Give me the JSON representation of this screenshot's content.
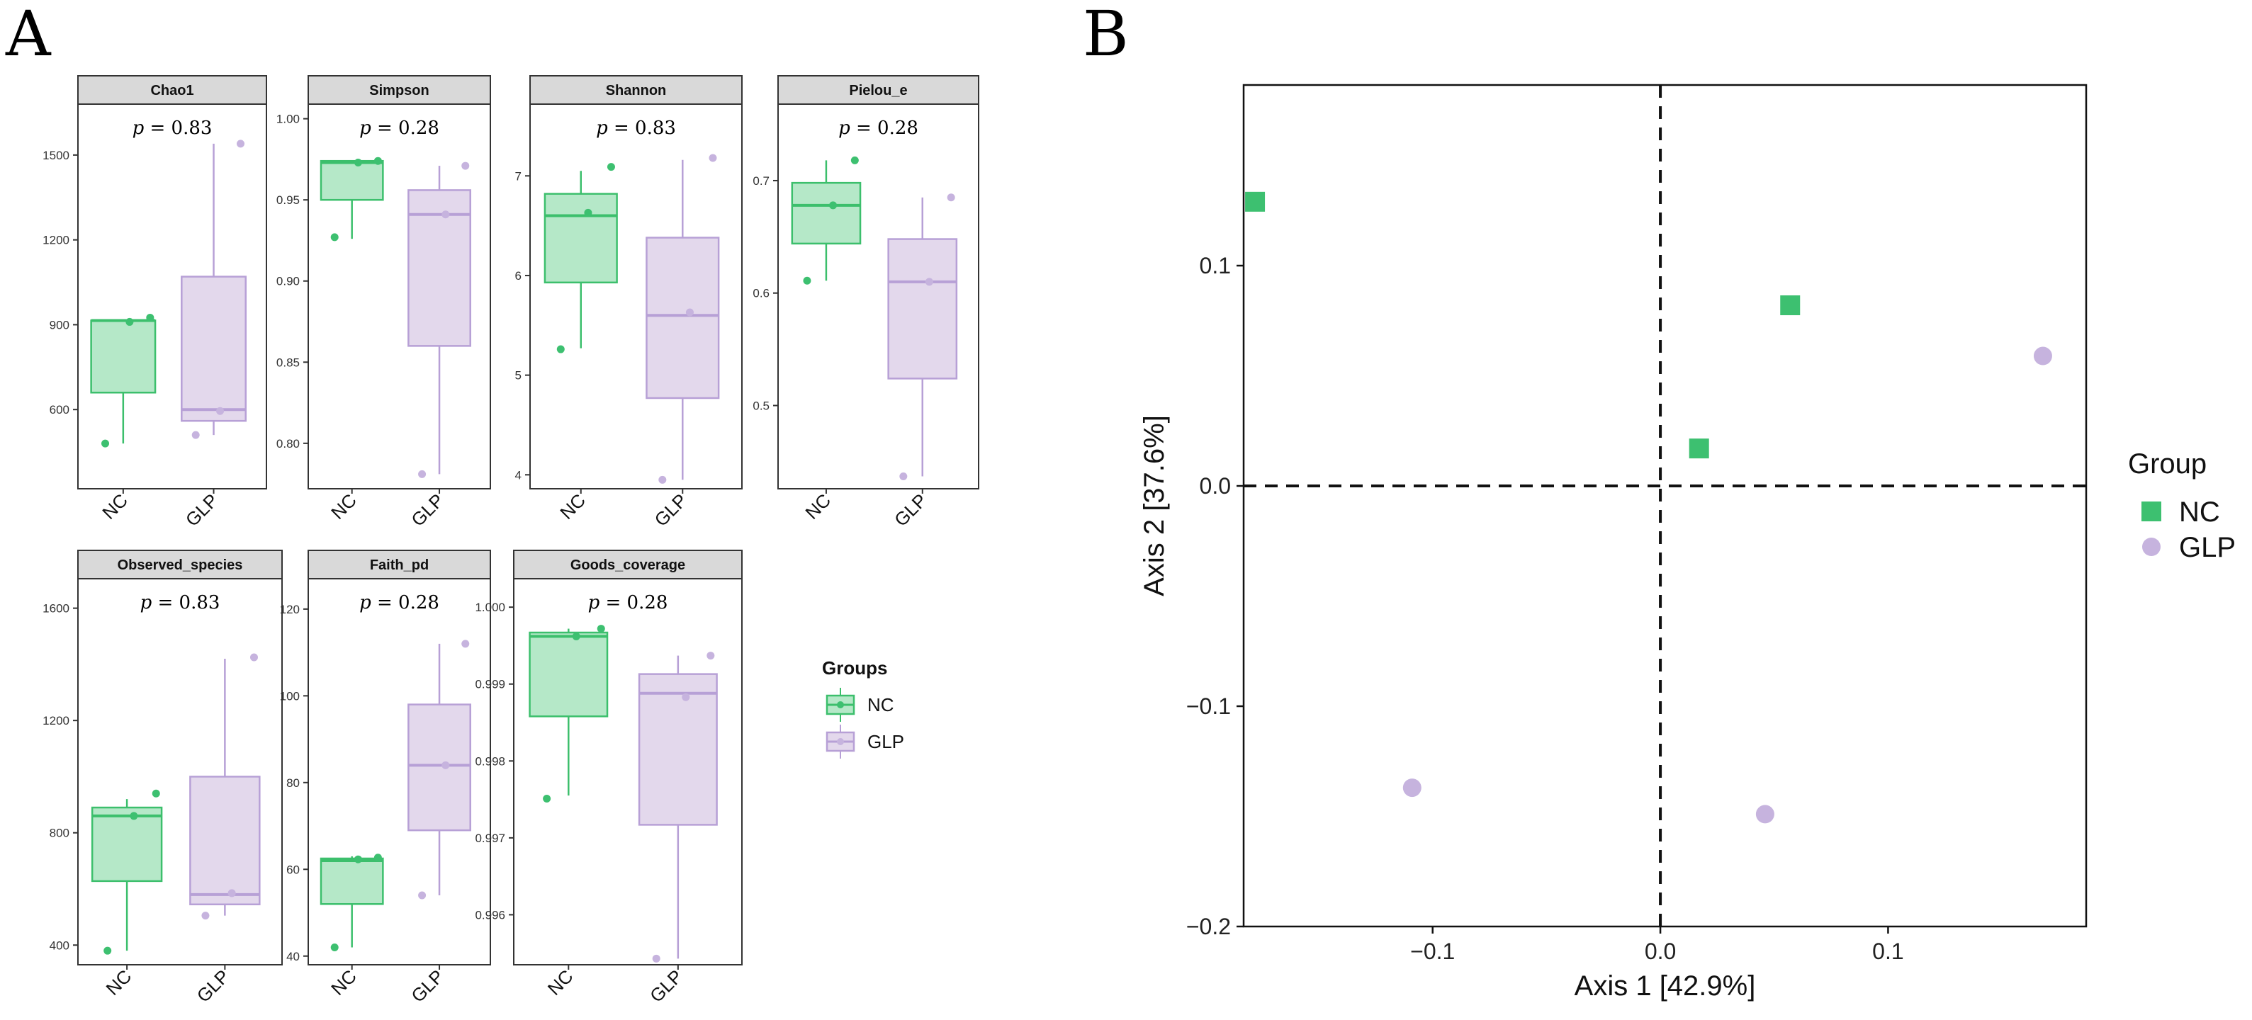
{
  "panel_labels": {
    "a": "A",
    "b": "B"
  },
  "colors": {
    "nc_stroke": "#3cbf6c",
    "nc_fill": "#b5e8c8",
    "glp_stroke": "#b7a0d6",
    "glp_fill": "#e3d8ec",
    "nc_point": "#3dc070",
    "glp_point": "#c6b3de"
  },
  "chart_data": [
    {
      "type": "box",
      "title": "Chao1",
      "pvalue_prefix": "p",
      "pvalue_text": " = 0.83",
      "categories": [
        "NC",
        "GLP"
      ],
      "ylim": [
        320,
        1680
      ],
      "yticks": [
        600,
        900,
        1200,
        1500
      ],
      "ytick_labels": [
        "600",
        "900",
        "1200",
        "1500"
      ],
      "boxes": [
        {
          "group": "NC",
          "min": 480,
          "q1": 660,
          "median": 915,
          "q3": 915,
          "max": 915,
          "points": [
            480,
            910,
            925
          ]
        },
        {
          "group": "GLP",
          "min": 510,
          "q1": 560,
          "median": 600,
          "q3": 1070,
          "max": 1540,
          "points": [
            510,
            595,
            1540
          ]
        }
      ]
    },
    {
      "type": "box",
      "title": "Simpson",
      "pvalue_prefix": "p",
      "pvalue_text": " = 0.28",
      "categories": [
        "NC",
        "GLP"
      ],
      "ylim": [
        0.772,
        1.009
      ],
      "yticks": [
        0.8,
        0.85,
        0.9,
        0.95,
        1.0
      ],
      "ytick_labels": [
        "0.80",
        "0.85",
        "0.90",
        "0.95",
        "1.00"
      ],
      "boxes": [
        {
          "group": "NC",
          "min": 0.926,
          "q1": 0.95,
          "median": 0.973,
          "q3": 0.974,
          "max": 0.974,
          "points": [
            0.927,
            0.973,
            0.974
          ]
        },
        {
          "group": "GLP",
          "min": 0.781,
          "q1": 0.86,
          "median": 0.941,
          "q3": 0.956,
          "max": 0.971,
          "points": [
            0.781,
            0.941,
            0.971
          ]
        }
      ]
    },
    {
      "type": "box",
      "title": "Shannon",
      "pvalue_prefix": "p",
      "pvalue_text": " = 0.83",
      "categories": [
        "NC",
        "GLP"
      ],
      "ylim": [
        3.86,
        7.72
      ],
      "yticks": [
        4,
        5,
        6,
        7
      ],
      "ytick_labels": [
        "4",
        "5",
        "6",
        "7"
      ],
      "boxes": [
        {
          "group": "NC",
          "min": 5.27,
          "q1": 5.93,
          "median": 6.6,
          "q3": 6.82,
          "max": 7.05,
          "points": [
            5.26,
            6.63,
            7.09
          ]
        },
        {
          "group": "GLP",
          "min": 3.95,
          "q1": 4.77,
          "median": 5.6,
          "q3": 6.38,
          "max": 7.16,
          "points": [
            3.95,
            5.63,
            7.18
          ]
        }
      ]
    },
    {
      "type": "box",
      "title": "Pielou_e",
      "pvalue_prefix": "p",
      "pvalue_text": " = 0.28",
      "categories": [
        "NC",
        "GLP"
      ],
      "ylim": [
        0.426,
        0.768
      ],
      "yticks": [
        0.5,
        0.6,
        0.7
      ],
      "ytick_labels": [
        "0.5",
        "0.6",
        "0.7"
      ],
      "boxes": [
        {
          "group": "NC",
          "min": 0.611,
          "q1": 0.644,
          "median": 0.678,
          "q3": 0.698,
          "max": 0.718,
          "points": [
            0.611,
            0.678,
            0.718
          ]
        },
        {
          "group": "GLP",
          "min": 0.437,
          "q1": 0.524,
          "median": 0.61,
          "q3": 0.648,
          "max": 0.685,
          "points": [
            0.437,
            0.61,
            0.685
          ]
        }
      ]
    },
    {
      "type": "box",
      "title": "Observed_species",
      "pvalue_prefix": "p",
      "pvalue_text": " = 0.83",
      "categories": [
        "NC",
        "GLP"
      ],
      "ylim": [
        330,
        1705
      ],
      "yticks": [
        400,
        800,
        1200,
        1600
      ],
      "ytick_labels": [
        "400",
        "800",
        "1200",
        "1600"
      ],
      "boxes": [
        {
          "group": "NC",
          "min": 380,
          "q1": 628,
          "median": 860,
          "q3": 890,
          "max": 920,
          "points": [
            380,
            860,
            940
          ]
        },
        {
          "group": "GLP",
          "min": 505,
          "q1": 545,
          "median": 580,
          "q3": 1000,
          "max": 1420,
          "points": [
            505,
            585,
            1425
          ]
        }
      ]
    },
    {
      "type": "box",
      "title": "Faith_pd",
      "pvalue_prefix": "p",
      "pvalue_text": " = 0.28",
      "categories": [
        "NC",
        "GLP"
      ],
      "ylim": [
        38,
        127
      ],
      "yticks": [
        40,
        60,
        80,
        100,
        120
      ],
      "ytick_labels": [
        "40",
        "60",
        "80",
        "100",
        "120"
      ],
      "boxes": [
        {
          "group": "NC",
          "min": 42,
          "q1": 52,
          "median": 62,
          "q3": 62.5,
          "max": 63,
          "points": [
            42,
            62.3,
            62.7
          ]
        },
        {
          "group": "GLP",
          "min": 54,
          "q1": 69,
          "median": 84,
          "q3": 98,
          "max": 112,
          "points": [
            54,
            84,
            112
          ]
        }
      ]
    },
    {
      "type": "box",
      "title": "Goods_coverage",
      "pvalue_prefix": "p",
      "pvalue_text": " = 0.28",
      "categories": [
        "NC",
        "GLP"
      ],
      "ylim": [
        0.99535,
        1.00037
      ],
      "yticks": [
        0.996,
        0.997,
        0.998,
        0.999,
        1.0
      ],
      "ytick_labels": [
        "0.996",
        "0.997",
        "0.998",
        "0.999",
        "1.000"
      ],
      "boxes": [
        {
          "group": "NC",
          "min": 0.99755,
          "q1": 0.99858,
          "median": 0.99962,
          "q3": 0.99967,
          "max": 0.99972,
          "points": [
            0.99751,
            0.99962,
            0.99972
          ]
        },
        {
          "group": "GLP",
          "min": 0.99543,
          "q1": 0.99717,
          "median": 0.99888,
          "q3": 0.99913,
          "max": 0.99937,
          "points": [
            0.99543,
            0.99883,
            0.99937
          ]
        }
      ]
    },
    {
      "type": "scatter",
      "title": "",
      "xlabel": "Axis 1 [42.9%]",
      "ylabel": "Axis 2 [37.6%]",
      "xlim": [
        -0.183,
        0.187
      ],
      "ylim": [
        -0.2,
        0.182
      ],
      "xticks": [
        -0.1,
        0.0,
        0.1
      ],
      "xtick_labels": [
        "−0.1",
        "0.0",
        "0.1"
      ],
      "yticks": [
        -0.2,
        -0.1,
        0.0,
        0.1
      ],
      "ytick_labels": [
        "−0.2",
        "−0.1",
        "0.0",
        "0.1"
      ],
      "series": [
        {
          "name": "NC",
          "marker": "square",
          "points": [
            [
              -0.178,
              0.129
            ],
            [
              0.057,
              0.082
            ],
            [
              0.017,
              0.017
            ]
          ]
        },
        {
          "name": "GLP",
          "marker": "circle",
          "points": [
            [
              0.168,
              0.059
            ],
            [
              -0.109,
              -0.137
            ],
            [
              0.046,
              -0.149
            ]
          ]
        }
      ],
      "legend": {
        "title": "Group",
        "items": [
          "NC",
          "GLP"
        ]
      }
    }
  ],
  "legend_a": {
    "title": "Groups",
    "items": [
      "NC",
      "GLP"
    ]
  }
}
